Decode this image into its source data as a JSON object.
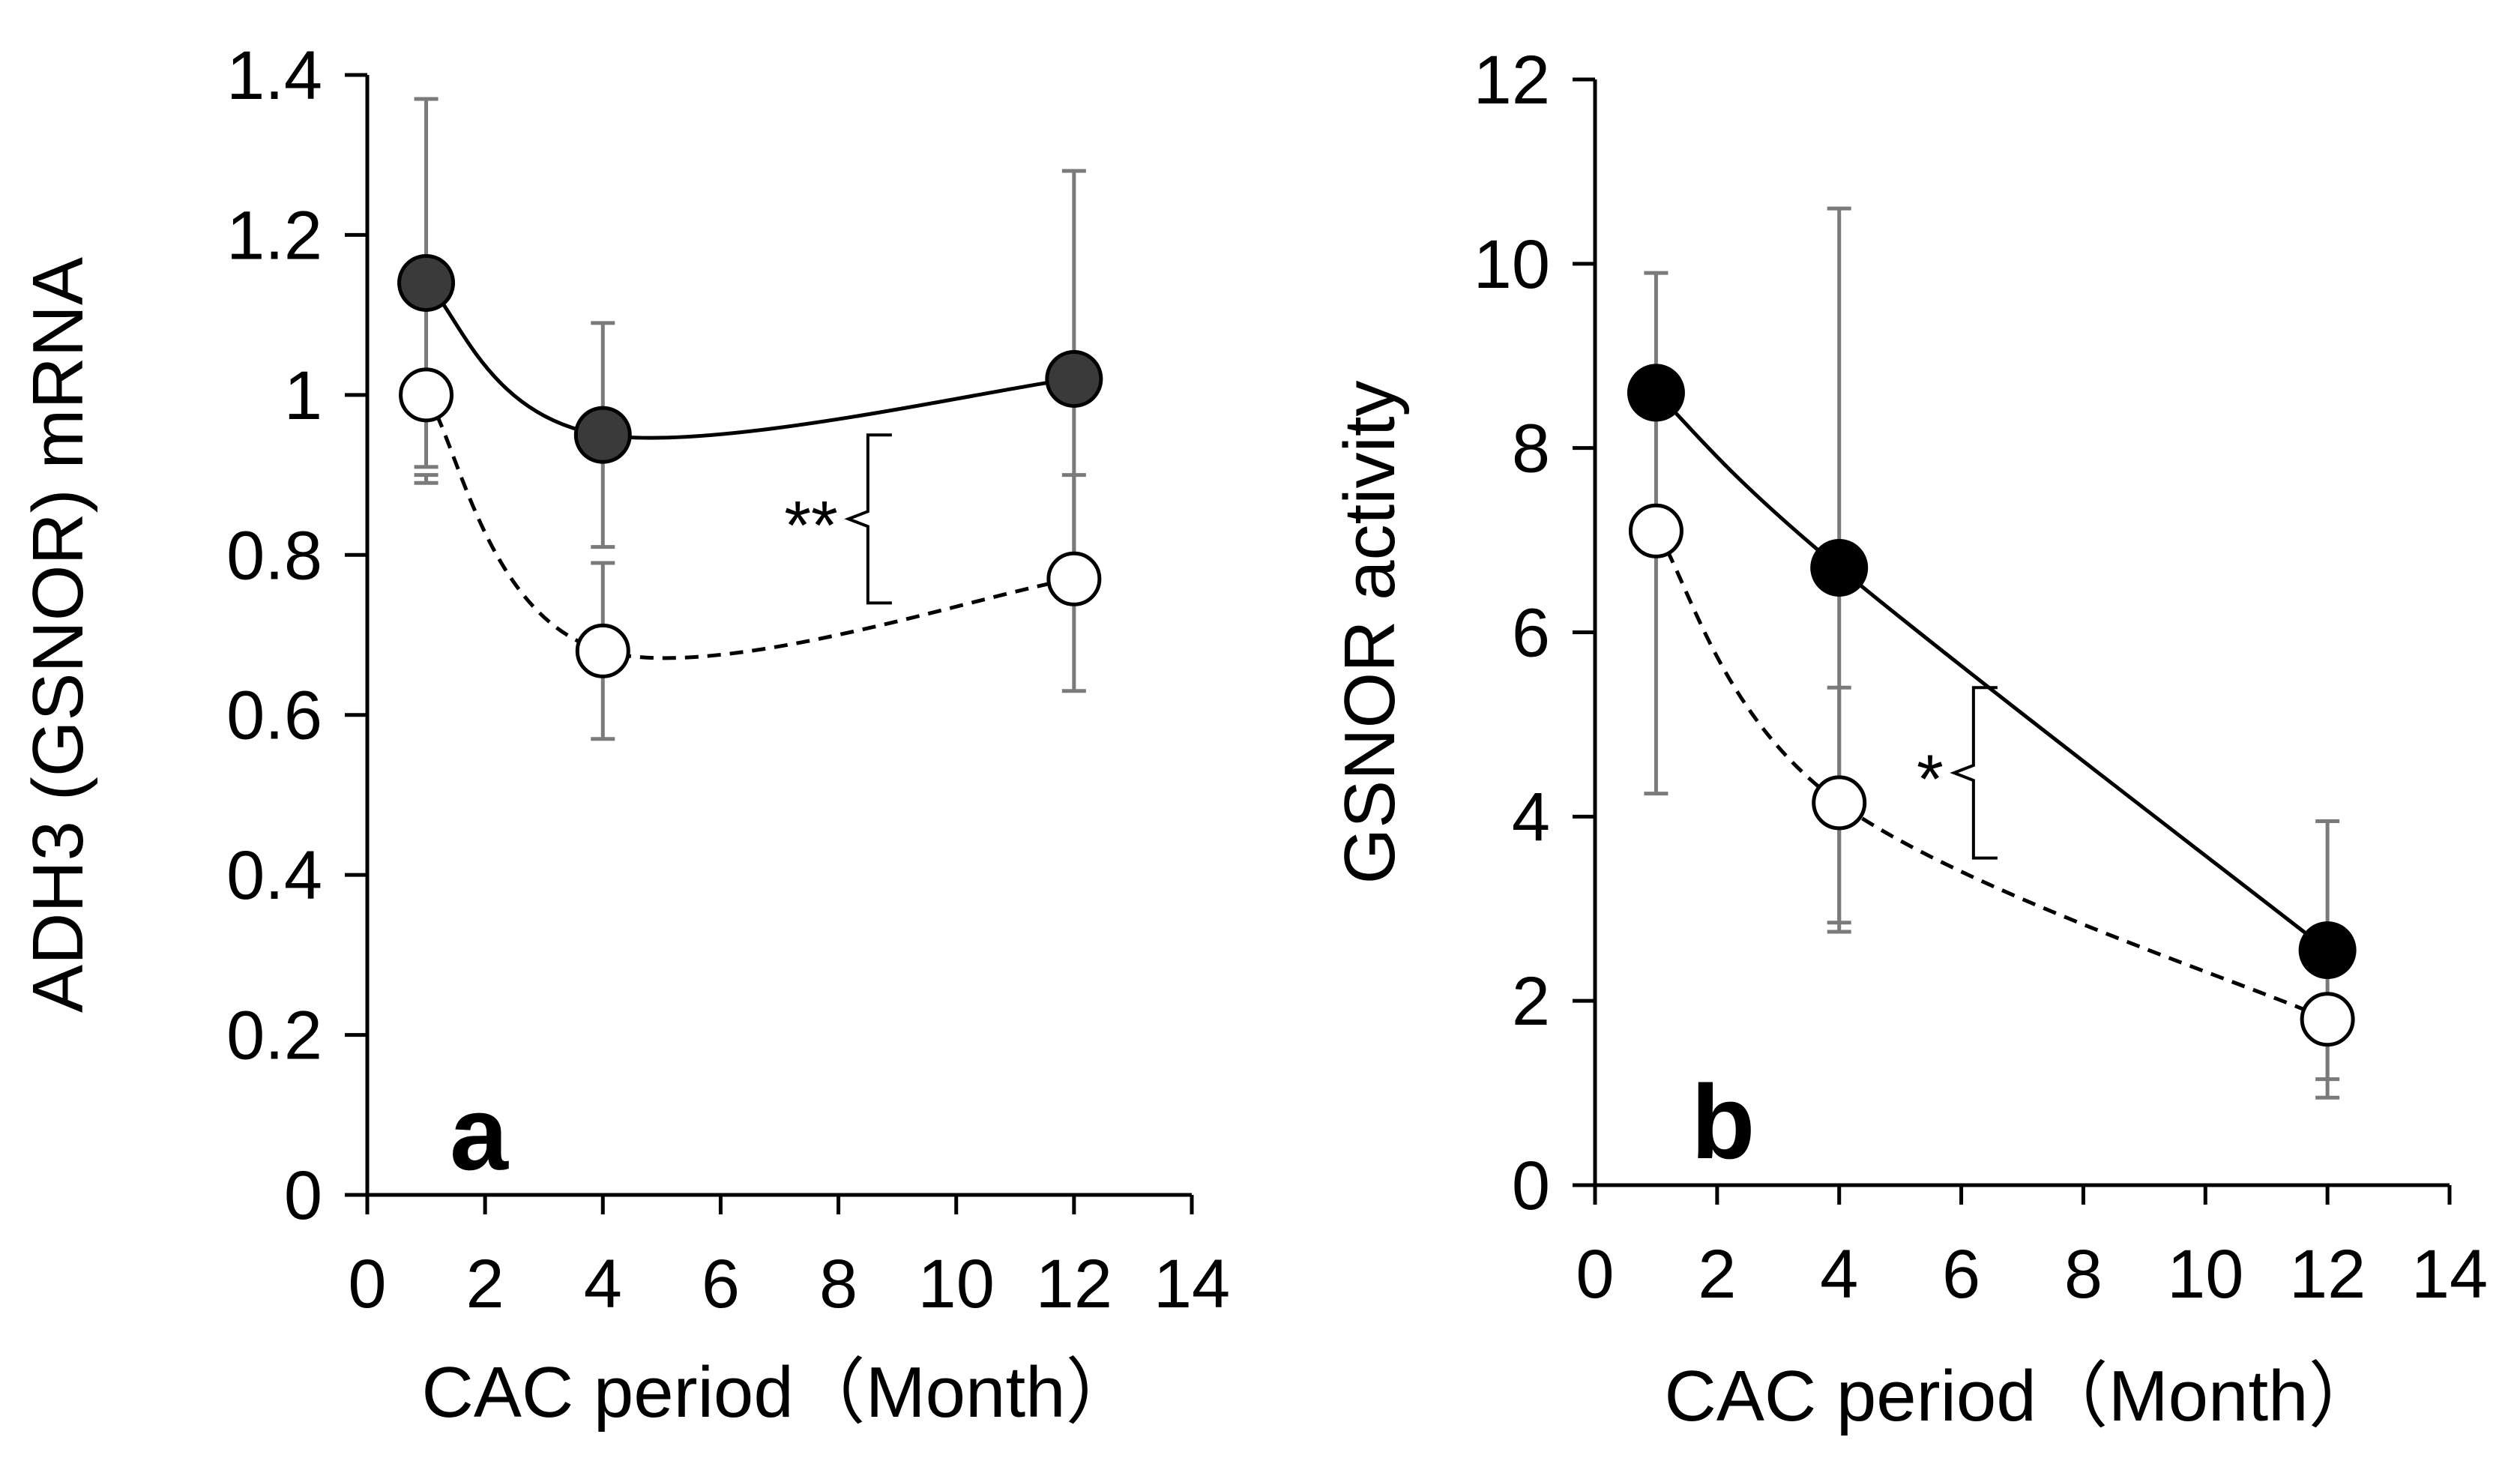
{
  "chart_data": [
    {
      "type": "line",
      "panel_label": "a",
      "xlabel": "CAC period（Month）",
      "ylabel": "ADH3 (GSNOR) mRNA",
      "xlim": [
        0,
        14
      ],
      "ylim": [
        0,
        1.4
      ],
      "xticks": [
        "0",
        "2",
        "4",
        "6",
        "8",
        "10",
        "12",
        "14"
      ],
      "yticks": [
        "0",
        "0.2",
        "0.4",
        "0.6",
        "0.8",
        "1",
        "1.2",
        "1.4"
      ],
      "series": [
        {
          "name": "filled",
          "marker": "filled-circle",
          "line": "solid",
          "x": [
            1,
            4,
            12
          ],
          "y": [
            1.14,
            0.95,
            1.02
          ],
          "err_upper": [
            1.37,
            1.09,
            1.28
          ],
          "err_lower": [
            0.91,
            0.81,
            0.77
          ]
        },
        {
          "name": "open",
          "marker": "open-circle",
          "line": "dashed",
          "x": [
            1,
            4,
            12
          ],
          "y": [
            1.0,
            0.68,
            0.77
          ],
          "err_upper": [
            0.9,
            0.79,
            0.9
          ],
          "err_lower": [
            0.89,
            0.57,
            0.63
          ]
        }
      ],
      "annotation": {
        "text": "**",
        "x": 8.5,
        "y_top": 0.95,
        "y_bottom": 0.74
      }
    },
    {
      "type": "line",
      "panel_label": "b",
      "xlabel": "CAC period（Month）",
      "ylabel": "GSNOR activity",
      "xlim": [
        0,
        14
      ],
      "ylim": [
        0,
        12
      ],
      "xticks": [
        "0",
        "2",
        "4",
        "6",
        "8",
        "10",
        "12",
        "14"
      ],
      "yticks": [
        "0",
        "2",
        "4",
        "6",
        "8",
        "10",
        "12"
      ],
      "series": [
        {
          "name": "filled",
          "marker": "filled-circle",
          "line": "solid",
          "x": [
            1,
            4,
            12
          ],
          "y": [
            8.6,
            6.7,
            2.55
          ],
          "err_upper": [
            9.9,
            10.6,
            3.95
          ],
          "err_lower": [
            7.3,
            2.85,
            1.15
          ]
        },
        {
          "name": "open",
          "marker": "open-circle",
          "line": "dashed",
          "x": [
            1,
            4,
            12
          ],
          "y": [
            7.1,
            4.15,
            1.8
          ],
          "err_upper": [
            7.3,
            5.4,
            2.0
          ],
          "err_lower": [
            4.25,
            2.75,
            0.95
          ]
        }
      ],
      "annotation": {
        "text": "*",
        "x": 6.2,
        "y_top": 5.4,
        "y_bottom": 3.55
      }
    }
  ]
}
